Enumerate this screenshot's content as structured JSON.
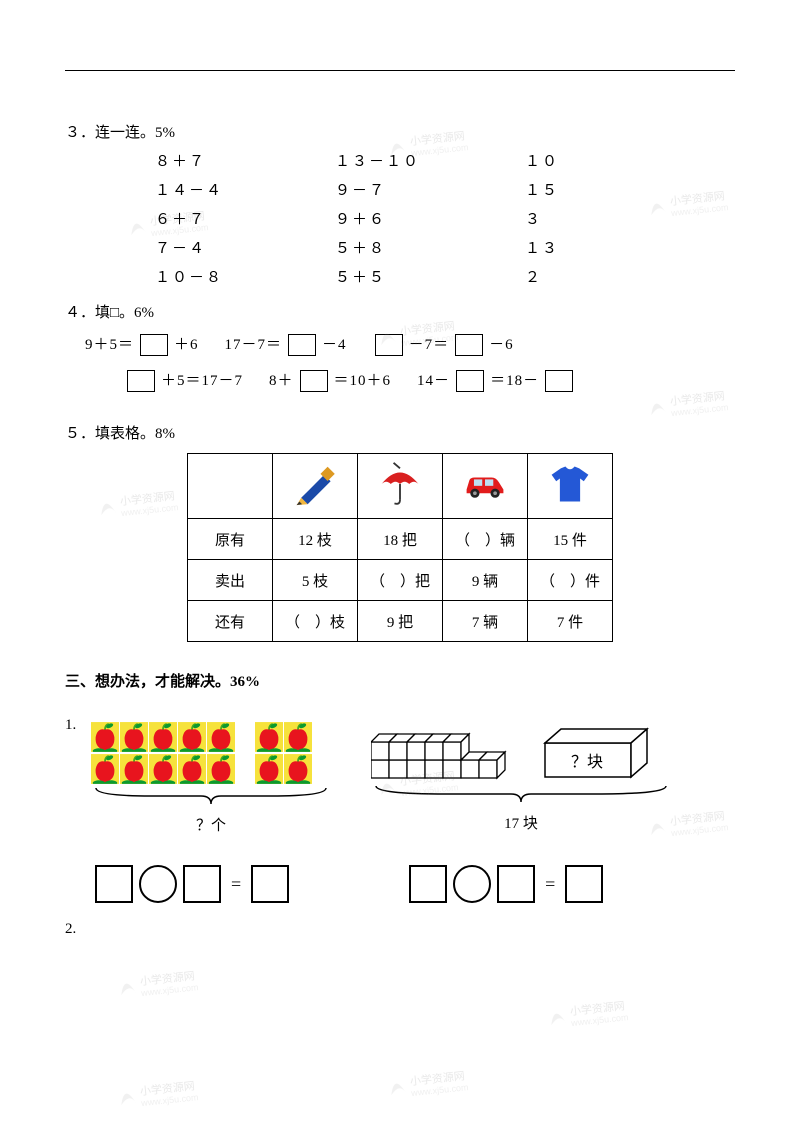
{
  "q3": {
    "title": "３．连一连。5%",
    "rows": [
      [
        "８＋７",
        "１３－１０",
        "１０"
      ],
      [
        "１４－４",
        "９－７",
        "１５"
      ],
      [
        "６＋７",
        "９＋６",
        "３"
      ],
      [
        "７－４",
        "５＋８",
        "１３"
      ],
      [
        "１０－８",
        "５＋５",
        "２"
      ]
    ]
  },
  "q4": {
    "title": "４．填□。6%",
    "lines": {
      "l1a_before": "9＋5＝",
      "l1a_after": "＋6",
      "l1b_before": "17－7＝",
      "l1b_after": "－4",
      "l1c_mid": "－7＝",
      "l1c_after": "－6",
      "l2a_after": "＋5＝17－7",
      "l2b_before": "8＋",
      "l2b_after": "＝10＋6",
      "l2c_before": "14－",
      "l2c_mid": "＝18－"
    }
  },
  "q5": {
    "title": "５．填表格。8%",
    "headers": [
      "",
      "pencil",
      "umbrella",
      "car",
      "shirt"
    ],
    "row_labels": [
      "原有",
      "卖出",
      "还有"
    ],
    "cells": [
      [
        "12 枝",
        "18 把",
        "（　）辆",
        "15 件"
      ],
      [
        "5 枝",
        "（　）把",
        "9 辆",
        "（　）件"
      ],
      [
        "（　）枝",
        "9 把",
        "7 辆",
        "7 件"
      ]
    ],
    "icon_colors": {
      "pencil_body": "#1b4aa8",
      "pencil_tip": "#f2b63d",
      "umbrella": "#d92020",
      "car_body": "#e21c1c",
      "car_wheel": "#222",
      "shirt": "#2458d6"
    }
  },
  "section3": {
    "title": "三、想办法，才能解决。36%",
    "p1_num": "1.",
    "p1_left_label": "？个",
    "p1_right_label": "17 块",
    "p1_box_label": "？块",
    "p1_apple_big_group": {
      "rows": 2,
      "cols": 5
    },
    "p1_apple_small_group": {
      "rows": 2,
      "cols": 2
    },
    "p1_cube_top_row": 5,
    "p1_cube_bottom_row": 7,
    "p2_num": "2.",
    "eq_sign": "="
  },
  "colors": {
    "apple_fill": "#e8141e",
    "apple_leaf": "#0c9a2f",
    "apple_bg": "#f6e23c"
  }
}
